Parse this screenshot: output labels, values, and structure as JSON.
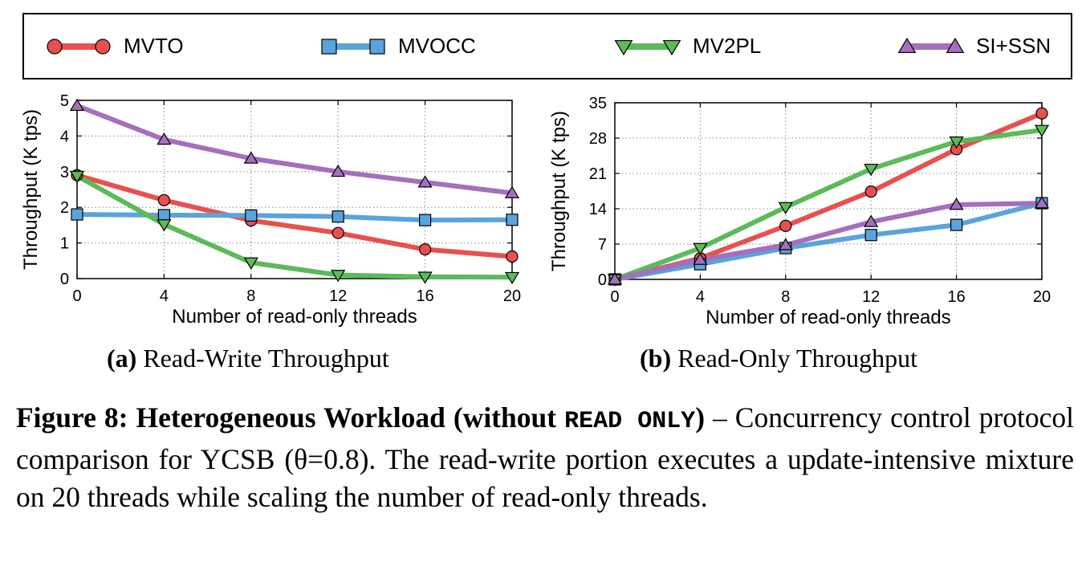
{
  "colors": {
    "MVTO": "#e8504f",
    "MVOCC": "#5aa3dc",
    "MV2PL": "#5cba5a",
    "SI+SSN": "#a56fbd"
  },
  "legend": [
    {
      "name": "MVTO",
      "marker": "circle"
    },
    {
      "name": "MVOCC",
      "marker": "square"
    },
    {
      "name": "MV2PL",
      "marker": "triangle-down"
    },
    {
      "name": "SI+SSN",
      "marker": "triangle-up"
    }
  ],
  "chart_data": [
    {
      "type": "line",
      "caption_label": "(a)",
      "caption_text": " Read-Write Throughput",
      "xlabel": "Number of read-only threads",
      "ylabel": "Throughput (K tps)",
      "x": [
        0,
        4,
        8,
        12,
        16,
        20
      ],
      "xlim": [
        0,
        20
      ],
      "ylim": [
        0,
        5
      ],
      "yticks": [
        0,
        1,
        2,
        3,
        4,
        5
      ],
      "grid": true,
      "series": [
        {
          "name": "MVTO",
          "marker": "circle",
          "values": [
            2.9,
            2.2,
            1.63,
            1.28,
            0.82,
            0.62
          ]
        },
        {
          "name": "MVOCC",
          "marker": "square",
          "values": [
            1.8,
            1.78,
            1.77,
            1.74,
            1.64,
            1.65
          ]
        },
        {
          "name": "MV2PL",
          "marker": "triangle-down",
          "values": [
            2.88,
            1.52,
            0.45,
            0.1,
            0.05,
            0.04
          ]
        },
        {
          "name": "SI+SSN",
          "marker": "triangle-up",
          "values": [
            4.85,
            3.9,
            3.37,
            3.0,
            2.7,
            2.4
          ]
        }
      ]
    },
    {
      "type": "line",
      "caption_label": "(b)",
      "caption_text": " Read-Only Throughput",
      "xlabel": "Number of read-only threads",
      "ylabel": "Throughput (K tps)",
      "x": [
        0,
        4,
        8,
        12,
        16,
        20
      ],
      "xlim": [
        0,
        20
      ],
      "ylim": [
        0,
        35
      ],
      "yticks": [
        0,
        7,
        14,
        21,
        28,
        35
      ],
      "grid": true,
      "series": [
        {
          "name": "MVTO",
          "marker": "circle",
          "values": [
            0,
            4.2,
            10.6,
            17.4,
            25.8,
            32.9
          ]
        },
        {
          "name": "MVOCC",
          "marker": "square",
          "values": [
            0,
            3.0,
            6.2,
            8.8,
            10.8,
            15.1
          ]
        },
        {
          "name": "MV2PL",
          "marker": "triangle-down",
          "values": [
            0,
            6.2,
            14.3,
            21.9,
            27.3,
            29.6
          ]
        },
        {
          "name": "SI+SSN",
          "marker": "triangle-up",
          "values": [
            0,
            3.9,
            6.8,
            11.4,
            14.8,
            15.1
          ]
        }
      ]
    }
  ],
  "caption": {
    "figure_label": "Figure 8: Heterogeneous Workload (without ",
    "mono": "READ ONLY",
    "figure_label_end": ")",
    "text": " – Concurrency control protocol comparison for YCSB (θ=0.8).  The read-write portion executes a update-intensive mixture on 20 threads while scaling the number of read-only threads."
  }
}
